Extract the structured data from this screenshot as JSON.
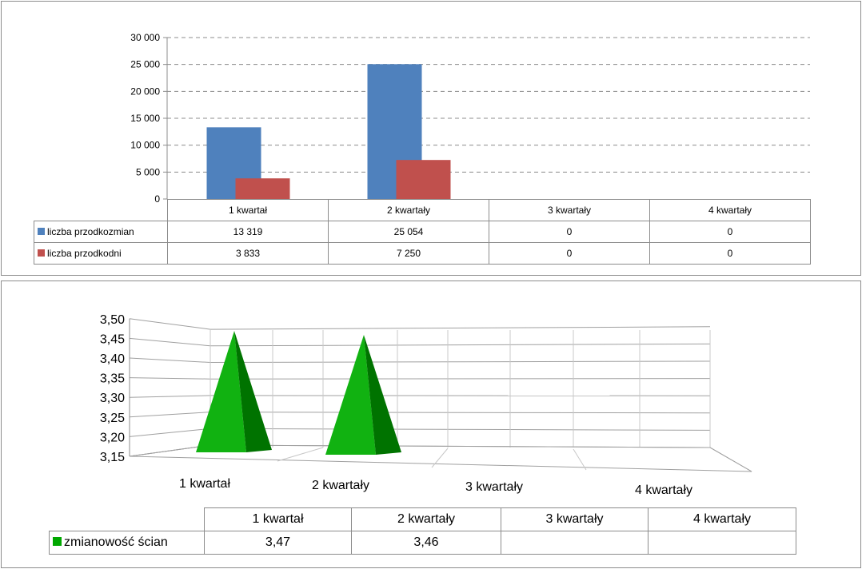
{
  "chart_data": [
    {
      "type": "bar",
      "categories": [
        "1 kwartał",
        "2 kwartały",
        "3 kwartały",
        "4 kwartały"
      ],
      "series": [
        {
          "name": "liczba przodkozmian",
          "values": [
            13319,
            25054,
            0,
            0
          ],
          "labels": [
            "13 319",
            "25 054",
            "0",
            "0"
          ],
          "color": "#4f81bd"
        },
        {
          "name": "liczba przodkodni",
          "values": [
            3833,
            7250,
            0,
            0
          ],
          "labels": [
            "3 833",
            "7 250",
            "0",
            "0"
          ],
          "color": "#c0504d"
        }
      ],
      "ylim": [
        0,
        30000
      ],
      "yticks": [
        "0",
        "5 000",
        "10 000",
        "15 000",
        "20 000",
        "25 000",
        "30 000"
      ],
      "grid": true,
      "gridline_style": "dashed",
      "legend": "data table"
    },
    {
      "type": "bar",
      "style": "3d-pyramid",
      "categories": [
        "1 kwartał",
        "2 kwartały",
        "3 kwartały",
        "4 kwartały"
      ],
      "series": [
        {
          "name": "zmianowość ścian",
          "values": [
            3.47,
            3.46,
            null,
            null
          ],
          "labels": [
            "3,47",
            "3,46",
            "",
            ""
          ],
          "color": "#00a800"
        }
      ],
      "ylim": [
        3.15,
        3.5
      ],
      "yticks": [
        "3,15",
        "3,20",
        "3,25",
        "3,30",
        "3,35",
        "3,40",
        "3,45",
        "3,50"
      ],
      "grid": true,
      "legend": "data table"
    }
  ]
}
